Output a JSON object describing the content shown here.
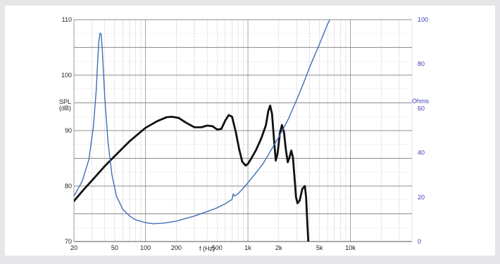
{
  "chart_data": {
    "type": "line",
    "xlabel": "f (Hz)",
    "ylabel": "SPL\n(dB)",
    "y2label": "Ohms",
    "x_scale": "log",
    "xlim": [
      20,
      40000
    ],
    "ylim": [
      70,
      110
    ],
    "y2lim": [
      0,
      100
    ],
    "x_ticks": [
      {
        "v": 20,
        "label": "20"
      },
      {
        "v": 50,
        "label": "50"
      },
      {
        "v": 100,
        "label": "100"
      },
      {
        "v": 200,
        "label": "200"
      },
      {
        "v": 500,
        "label": "500"
      },
      {
        "v": 1000,
        "label": "1k"
      },
      {
        "v": 2000,
        "label": "2k"
      },
      {
        "v": 5000,
        "label": "5k"
      },
      {
        "v": 10000,
        "label": "10k"
      }
    ],
    "y_ticks": [
      70,
      80,
      90,
      100,
      110
    ],
    "y2_ticks": [
      0,
      20,
      40,
      60,
      80,
      100
    ],
    "grid": true,
    "series": [
      {
        "axis": "left",
        "color": "#111111",
        "x": [
          20,
          25,
          30,
          40,
          50,
          70,
          100,
          130,
          160,
          180,
          210,
          250,
          300,
          350,
          400,
          450,
          500,
          550,
          600,
          650,
          700,
          760,
          820,
          880,
          950,
          1000,
          1080,
          1200,
          1350,
          1500,
          1580,
          1650,
          1720,
          1800,
          1870,
          1950,
          2050,
          2150,
          2250,
          2350,
          2450,
          2550,
          2650,
          2750,
          2850,
          2950,
          3050,
          3200,
          3400,
          3600,
          3700,
          3800,
          3900,
          4000
        ],
        "y": [
          77.3,
          79.4,
          81.0,
          83.6,
          85.4,
          88.1,
          90.5,
          91.7,
          92.4,
          92.5,
          92.3,
          91.4,
          90.6,
          90.6,
          90.9,
          90.8,
          90.2,
          90.3,
          91.8,
          92.8,
          92.5,
          89.8,
          86.7,
          84.4,
          83.7,
          84.0,
          85.0,
          86.5,
          88.6,
          91.0,
          93.5,
          94.5,
          93.0,
          88.3,
          84.6,
          85.9,
          89.5,
          91.0,
          89.7,
          86.5,
          84.3,
          85.2,
          86.4,
          85.2,
          81.6,
          78.0,
          76.9,
          77.4,
          79.5,
          80.0,
          78.0,
          73.5,
          69.5,
          67.0
        ]
      },
      {
        "axis": "right",
        "color": "#3d6fb5",
        "x": [
          20,
          24,
          28,
          31,
          33,
          34,
          35,
          36,
          37,
          38,
          40,
          43,
          47,
          52,
          60,
          70,
          80,
          100,
          120,
          150,
          200,
          300,
          400,
          500,
          600,
          700,
          720,
          740,
          800,
          900,
          1000,
          1200,
          1400,
          1600,
          1800,
          2000,
          2500,
          3000,
          3500,
          4000,
          5000,
          6000,
          6500,
          7000
        ],
        "y": [
          20.5,
          27.0,
          37.0,
          52.0,
          68.0,
          80.0,
          90.0,
          94.0,
          93.0,
          85.0,
          65.0,
          45.0,
          30.0,
          20.5,
          14.5,
          11.5,
          9.8,
          8.5,
          8.0,
          8.3,
          9.2,
          11.5,
          13.5,
          15.2,
          17.0,
          19.0,
          21.5,
          20.5,
          21.5,
          24.0,
          26.5,
          31.0,
          35.0,
          39.5,
          43.5,
          47.0,
          55.5,
          64.0,
          71.5,
          78.5,
          89.0,
          98.0,
          101.0,
          104.0
        ]
      }
    ]
  }
}
